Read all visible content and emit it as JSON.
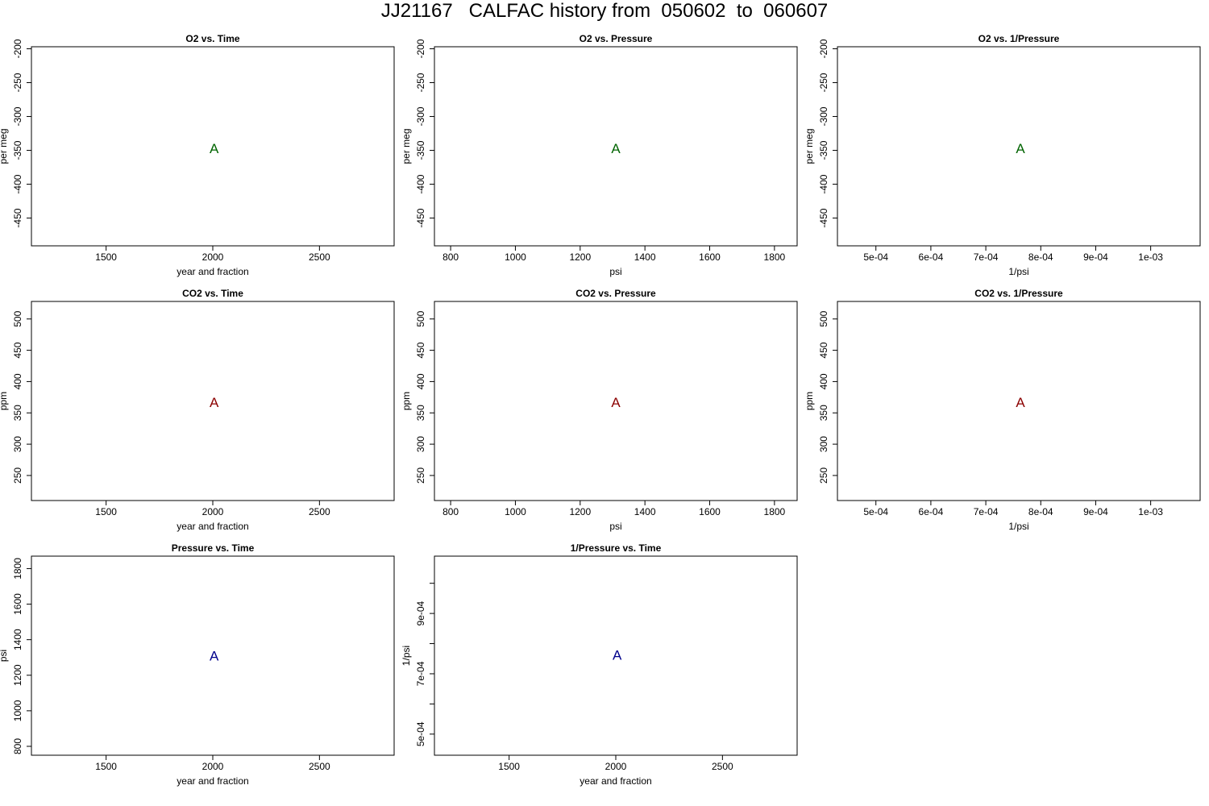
{
  "title": "JJ21167   CALFAC history from  050602  to  060607",
  "colors": {
    "o2": "#006400",
    "co2": "#8b0000",
    "pressure": "#00008b",
    "axis": "#000000"
  },
  "chart_data": [
    {
      "type": "scatter",
      "title": "O2 vs. Time",
      "xlabel": "year and fraction",
      "ylabel": "per meg",
      "xlim": [
        1150,
        2850
      ],
      "ylim": [
        -491,
        -197
      ],
      "x_ticks": [
        1500,
        2000,
        2500
      ],
      "x_tick_labels": [
        "1500",
        "2000",
        "2500"
      ],
      "y_ticks": [
        -200,
        -250,
        -300,
        -350,
        -400,
        -450
      ],
      "y_tick_labels": [
        "-200",
        "-250",
        "-300",
        "-350",
        "-400",
        "-450"
      ],
      "y_reversed": true,
      "marker": "A",
      "color": "o2",
      "points": [
        {
          "x": 2006.4,
          "y": -347
        }
      ]
    },
    {
      "type": "scatter",
      "title": "O2 vs. Pressure",
      "xlabel": "psi",
      "ylabel": "per meg",
      "xlim": [
        750,
        1870
      ],
      "ylim": [
        -491,
        -197
      ],
      "x_ticks": [
        800,
        1000,
        1200,
        1400,
        1600,
        1800
      ],
      "x_tick_labels": [
        "800",
        "1000",
        "1200",
        "1400",
        "1600",
        "1800"
      ],
      "y_ticks": [
        -200,
        -250,
        -300,
        -350,
        -400,
        -450
      ],
      "y_tick_labels": [
        "-200",
        "-250",
        "-300",
        "-350",
        "-400",
        "-450"
      ],
      "y_reversed": true,
      "marker": "A",
      "color": "o2",
      "points": [
        {
          "x": 1310,
          "y": -347
        }
      ]
    },
    {
      "type": "scatter",
      "title": "O2 vs. 1/Pressure",
      "xlabel": "1/psi",
      "ylabel": "per meg",
      "xlim": [
        0.00043,
        0.00109
      ],
      "ylim": [
        -491,
        -197
      ],
      "x_ticks": [
        0.0005,
        0.0006,
        0.0007,
        0.0008,
        0.0009,
        0.001
      ],
      "x_tick_labels": [
        "5e-04",
        "6e-04",
        "7e-04",
        "8e-04",
        "9e-04",
        "1e-03"
      ],
      "y_ticks": [
        -200,
        -250,
        -300,
        -350,
        -400,
        -450
      ],
      "y_tick_labels": [
        "-200",
        "-250",
        "-300",
        "-350",
        "-400",
        "-450"
      ],
      "y_reversed": true,
      "marker": "A",
      "color": "o2",
      "points": [
        {
          "x": 0.000763,
          "y": -347
        }
      ]
    },
    {
      "type": "scatter",
      "title": "CO2 vs. Time",
      "xlabel": "year and fraction",
      "ylabel": "ppm",
      "xlim": [
        1150,
        2850
      ],
      "ylim": [
        210,
        528
      ],
      "x_ticks": [
        1500,
        2000,
        2500
      ],
      "x_tick_labels": [
        "1500",
        "2000",
        "2500"
      ],
      "y_ticks": [
        250,
        300,
        350,
        400,
        450,
        500
      ],
      "y_tick_labels": [
        "250",
        "300",
        "350",
        "400",
        "450",
        "500"
      ],
      "marker": "A",
      "color": "co2",
      "points": [
        {
          "x": 2006.4,
          "y": 367
        }
      ]
    },
    {
      "type": "scatter",
      "title": "CO2 vs. Pressure",
      "xlabel": "psi",
      "ylabel": "ppm",
      "xlim": [
        750,
        1870
      ],
      "ylim": [
        210,
        528
      ],
      "x_ticks": [
        800,
        1000,
        1200,
        1400,
        1600,
        1800
      ],
      "x_tick_labels": [
        "800",
        "1000",
        "1200",
        "1400",
        "1600",
        "1800"
      ],
      "y_ticks": [
        250,
        300,
        350,
        400,
        450,
        500
      ],
      "y_tick_labels": [
        "250",
        "300",
        "350",
        "400",
        "450",
        "500"
      ],
      "marker": "A",
      "color": "co2",
      "points": [
        {
          "x": 1310,
          "y": 367
        }
      ]
    },
    {
      "type": "scatter",
      "title": "CO2 vs. 1/Pressure",
      "xlabel": "1/psi",
      "ylabel": "ppm",
      "xlim": [
        0.00043,
        0.00109
      ],
      "ylim": [
        210,
        528
      ],
      "x_ticks": [
        0.0005,
        0.0006,
        0.0007,
        0.0008,
        0.0009,
        0.001
      ],
      "x_tick_labels": [
        "5e-04",
        "6e-04",
        "7e-04",
        "8e-04",
        "9e-04",
        "1e-03"
      ],
      "y_ticks": [
        250,
        300,
        350,
        400,
        450,
        500
      ],
      "y_tick_labels": [
        "250",
        "300",
        "350",
        "400",
        "450",
        "500"
      ],
      "marker": "A",
      "color": "co2",
      "points": [
        {
          "x": 0.000763,
          "y": 367
        }
      ]
    },
    {
      "type": "scatter",
      "title": "Pressure vs. Time",
      "xlabel": "year and fraction",
      "ylabel": "psi",
      "xlim": [
        1150,
        2850
      ],
      "ylim": [
        750,
        1870
      ],
      "x_ticks": [
        1500,
        2000,
        2500
      ],
      "x_tick_labels": [
        "1500",
        "2000",
        "2500"
      ],
      "y_ticks": [
        800,
        1000,
        1200,
        1400,
        1600,
        1800
      ],
      "y_tick_labels": [
        "800",
        "1000",
        "1200",
        "1400",
        "1600",
        "1800"
      ],
      "marker": "A",
      "color": "pressure",
      "points": [
        {
          "x": 2006.4,
          "y": 1310
        }
      ]
    },
    {
      "type": "scatter",
      "title": "1/Pressure vs. Time",
      "xlabel": "year and fraction",
      "ylabel": "1/psi",
      "xlim": [
        1150,
        2850
      ],
      "ylim": [
        0.00043,
        0.00109
      ],
      "x_ticks": [
        1500,
        2000,
        2500
      ],
      "x_tick_labels": [
        "1500",
        "2000",
        "2500"
      ],
      "y_ticks": [
        0.0005,
        0.0006,
        0.0007,
        0.0008,
        0.0009,
        0.001
      ],
      "y_tick_labels": [
        "5e-04",
        "",
        "7e-04",
        "",
        "9e-04",
        ""
      ],
      "marker": "A",
      "color": "pressure",
      "points": [
        {
          "x": 2006.4,
          "y": 0.000763
        }
      ]
    }
  ]
}
